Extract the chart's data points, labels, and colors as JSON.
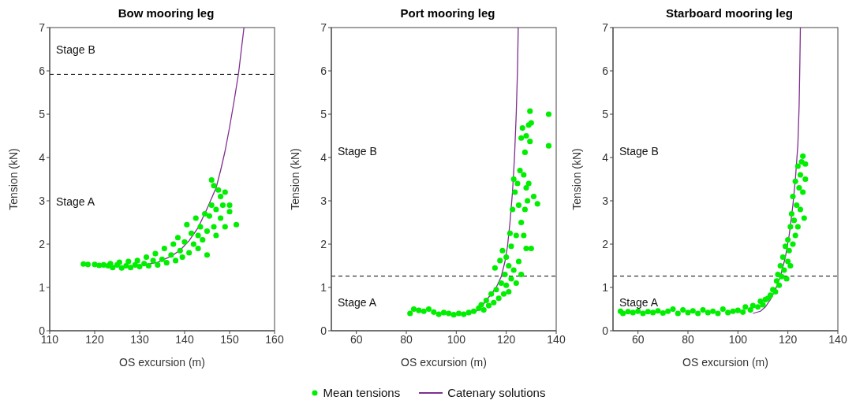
{
  "chart_data": [
    {
      "type": "scatter",
      "title": "Bow mooring leg",
      "xlabel": "OS excursion (m)",
      "ylabel": "Tension (kN)",
      "xlim": [
        110,
        160
      ],
      "xticks": [
        110,
        120,
        130,
        140,
        150,
        160
      ],
      "ylim": [
        0,
        7
      ],
      "yticks": [
        0,
        1,
        2,
        3,
        4,
        5,
        6,
        7
      ],
      "grid": false,
      "legend": false,
      "series": [
        {
          "type": "scatter",
          "marker": "circle",
          "color": "#00ee00",
          "x": [
            117.5,
            118.5,
            120,
            121,
            122,
            123,
            123.5,
            124,
            125,
            125.5,
            126,
            127,
            127.5,
            128,
            129,
            129.5,
            130,
            131,
            131.5,
            132,
            133,
            133.5,
            134,
            135,
            135.5,
            136,
            137,
            137.5,
            138,
            138.5,
            139,
            139.5,
            140,
            140.5,
            141,
            141.5,
            142,
            142.5,
            143,
            143,
            143.5,
            144,
            144.5,
            145,
            145,
            145.5,
            146,
            146,
            146.5,
            146.5,
            147,
            147,
            147.5,
            148,
            148,
            148.5,
            149,
            149,
            150,
            150,
            151.5
          ],
          "values": [
            1.54,
            1.53,
            1.53,
            1.51,
            1.52,
            1.5,
            1.55,
            1.46,
            1.52,
            1.58,
            1.45,
            1.5,
            1.6,
            1.46,
            1.52,
            1.62,
            1.48,
            1.55,
            1.7,
            1.5,
            1.62,
            1.78,
            1.52,
            1.65,
            1.9,
            1.57,
            1.75,
            2.0,
            1.62,
            2.15,
            1.85,
            1.7,
            2.05,
            2.45,
            1.8,
            2.25,
            2.0,
            2.6,
            1.9,
            2.2,
            2.4,
            2.1,
            2.7,
            1.75,
            2.3,
            2.65,
            3.48,
            2.9,
            3.35,
            2.4,
            2.8,
            2.2,
            3.25,
            2.6,
            3.1,
            2.9,
            3.2,
            2.4,
            2.9,
            2.75,
            2.45
          ]
        },
        {
          "type": "line",
          "marker": "none",
          "color": "#7e2f8e",
          "x": [
            131,
            134,
            137,
            139,
            141,
            143,
            145,
            147,
            148,
            149,
            150,
            151,
            152,
            153.2
          ],
          "values": [
            1.52,
            1.58,
            1.72,
            1.86,
            2.08,
            2.38,
            2.82,
            3.3,
            3.7,
            4.15,
            4.7,
            5.3,
            5.95,
            7.0
          ]
        }
      ],
      "ref_lines": [
        {
          "axis": "y",
          "value": 5.92,
          "color": "#000000",
          "line_style": "dashed"
        }
      ],
      "annotations": [
        "Stage B",
        "Stage A"
      ]
    },
    {
      "type": "scatter",
      "title": "Port mooring leg",
      "xlabel": "OS excursion (m)",
      "ylabel": "Tension (kN)",
      "xlim": [
        50,
        140
      ],
      "xticks": [
        60,
        80,
        100,
        120,
        140
      ],
      "ylim": [
        0,
        7
      ],
      "yticks": [
        0,
        1,
        2,
        3,
        4,
        5,
        6,
        7
      ],
      "grid": false,
      "legend": "bottom",
      "series": [
        {
          "type": "scatter",
          "marker": "circle",
          "name": "Mean tensions",
          "color": "#00ee00",
          "x": [
            81.5,
            83,
            85,
            87,
            89,
            91,
            93,
            95,
            97,
            99,
            101,
            103,
            105,
            107,
            109,
            110,
            111,
            112,
            113,
            114,
            115,
            115.5,
            116,
            117,
            117.5,
            118,
            118.5,
            119,
            119.5,
            120,
            120,
            121,
            121,
            121.5,
            122,
            122,
            122.5,
            123,
            123,
            123.5,
            124,
            124,
            124.5,
            125,
            125,
            125.5,
            126,
            126,
            126,
            126.5,
            127,
            127,
            127.5,
            127.5,
            128,
            128,
            128,
            128.5,
            129,
            129,
            129.5,
            129.5,
            130,
            130,
            131,
            132.5,
            137,
            137
          ],
          "values": [
            0.4,
            0.5,
            0.47,
            0.45,
            0.5,
            0.43,
            0.38,
            0.42,
            0.4,
            0.37,
            0.4,
            0.38,
            0.42,
            0.45,
            0.52,
            0.6,
            0.48,
            0.7,
            0.58,
            0.85,
            0.65,
            1.45,
            0.95,
            0.75,
            1.62,
            1.1,
            1.85,
            0.85,
            1.3,
            1.05,
            1.7,
            1.5,
            0.9,
            2.25,
            1.2,
            1.95,
            2.8,
            3.5,
            1.4,
            3.2,
            2.2,
            1.1,
            3.4,
            2.9,
            1.6,
            3.7,
            4.45,
            2.5,
            1.3,
            4.68,
            3.6,
            2.2,
            4.12,
            2.8,
            4.5,
            3.3,
            1.9,
            3.0,
            4.75,
            3.4,
            5.07,
            4.37,
            4.8,
            1.9,
            3.1,
            2.93,
            5.0,
            4.27
          ]
        },
        {
          "type": "line",
          "marker": "none",
          "name": "Catenary solutions",
          "color": "#7e2f8e",
          "x": [
            105.5,
            108,
            110,
            112,
            114,
            116,
            118,
            119.5,
            120.5,
            121.5,
            122.5,
            123.3,
            124,
            124.5,
            124.8
          ],
          "values": [
            0.4,
            0.45,
            0.55,
            0.7,
            0.85,
            1.0,
            1.25,
            1.6,
            1.95,
            2.5,
            3.2,
            4.0,
            5.0,
            6.0,
            7.0
          ]
        }
      ],
      "ref_lines": [
        {
          "axis": "y",
          "value": 1.26,
          "color": "#000000",
          "line_style": "dashed"
        }
      ],
      "annotations": [
        "Stage B",
        "Stage A"
      ]
    },
    {
      "type": "scatter",
      "title": "Starboard mooring leg",
      "xlabel": "OS excursion (m)",
      "ylabel": "Tension (kN)",
      "xlim": [
        50,
        140
      ],
      "xticks": [
        60,
        80,
        100,
        120,
        140
      ],
      "ylim": [
        0,
        7
      ],
      "yticks": [
        0,
        1,
        2,
        3,
        4,
        5,
        6,
        7
      ],
      "grid": false,
      "legend": false,
      "series": [
        {
          "type": "scatter",
          "marker": "circle",
          "color": "#00ee00",
          "x": [
            53,
            54,
            56,
            58,
            60,
            62,
            64,
            66,
            68,
            70,
            72,
            74,
            76,
            78,
            80,
            82,
            84,
            86,
            88,
            90,
            92,
            94,
            96,
            98,
            100,
            102,
            103,
            105,
            106,
            108,
            109,
            110,
            111,
            112,
            113,
            114,
            115,
            115.5,
            116,
            116.5,
            117,
            117.5,
            118,
            118.5,
            119,
            119.5,
            120,
            120,
            120.5,
            121,
            121,
            121.5,
            122,
            122,
            122.5,
            123,
            123,
            123.5,
            124,
            124,
            124.5,
            125,
            125,
            125.5,
            126,
            126,
            126.5,
            127,
            127
          ],
          "values": [
            0.45,
            0.4,
            0.44,
            0.42,
            0.45,
            0.4,
            0.44,
            0.42,
            0.46,
            0.41,
            0.45,
            0.5,
            0.4,
            0.48,
            0.42,
            0.46,
            0.4,
            0.48,
            0.42,
            0.45,
            0.4,
            0.5,
            0.42,
            0.45,
            0.47,
            0.43,
            0.55,
            0.48,
            0.58,
            0.55,
            0.68,
            0.6,
            0.72,
            0.75,
            0.82,
            0.95,
            0.9,
            1.15,
            1.3,
            1.05,
            1.5,
            1.25,
            1.7,
            1.4,
            1.95,
            1.2,
            1.6,
            2.1,
            1.85,
            2.4,
            1.5,
            2.7,
            2.0,
            3.1,
            2.55,
            3.45,
            2.2,
            2.9,
            3.8,
            2.4,
            3.3,
            3.6,
            2.8,
            3.9,
            4.03,
            3.2,
            2.6,
            3.85,
            3.5
          ]
        },
        {
          "type": "line",
          "marker": "none",
          "color": "#7e2f8e",
          "x": [
            106,
            109,
            111,
            113,
            115,
            117,
            119,
            120.5,
            122,
            123,
            124,
            124.5,
            124.8,
            125
          ],
          "values": [
            0.4,
            0.45,
            0.55,
            0.72,
            0.95,
            1.25,
            1.7,
            2.2,
            2.9,
            3.5,
            4.3,
            5.2,
            6.2,
            7.0
          ]
        }
      ],
      "ref_lines": [
        {
          "axis": "y",
          "value": 1.26,
          "color": "#000000",
          "line_style": "dashed"
        }
      ],
      "annotations": [
        "Stage B",
        "Stage A"
      ]
    }
  ]
}
